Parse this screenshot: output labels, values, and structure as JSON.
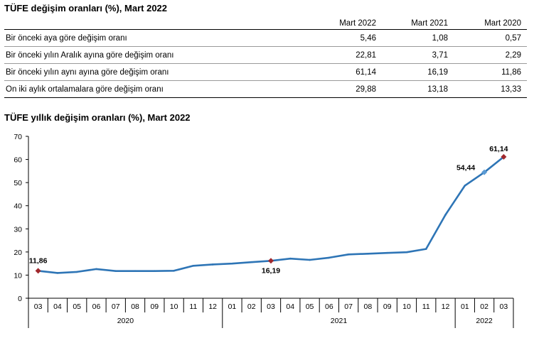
{
  "table": {
    "title": "TÜFE değişim oranları (%), Mart 2022",
    "columns": [
      "Mart 2022",
      "Mart 2021",
      "Mart 2020"
    ],
    "rows": [
      {
        "label": "Bir önceki aya göre değişim oranı",
        "values": [
          "5,46",
          "1,08",
          "0,57"
        ]
      },
      {
        "label": "Bir önceki yılın Aralık ayına göre değişim oranı",
        "values": [
          "22,81",
          "3,71",
          "2,29"
        ]
      },
      {
        "label": "Bir önceki yılın aynı ayına göre değişim oranı",
        "values": [
          "61,14",
          "16,19",
          "11,86"
        ]
      },
      {
        "label": "On iki aylık ortalamalara göre değişim oranı",
        "values": [
          "29,88",
          "13,18",
          "13,33"
        ]
      }
    ]
  },
  "chart_data": {
    "type": "line",
    "title": "TÜFE yıllık değişim oranları (%), Mart 2022",
    "xlabel": "",
    "ylabel": "",
    "ylim": [
      0,
      70
    ],
    "yticks": [
      0,
      10,
      20,
      30,
      40,
      50,
      60,
      70
    ],
    "grid": false,
    "legend": "none",
    "categories": [
      "03",
      "04",
      "05",
      "06",
      "07",
      "08",
      "09",
      "10",
      "11",
      "12",
      "01",
      "02",
      "03",
      "04",
      "05",
      "06",
      "07",
      "08",
      "09",
      "10",
      "11",
      "12",
      "01",
      "02",
      "03"
    ],
    "year_groups": [
      {
        "label": "2020",
        "start": 0,
        "end": 9
      },
      {
        "label": "2021",
        "start": 10,
        "end": 21
      },
      {
        "label": "2022",
        "start": 22,
        "end": 24
      }
    ],
    "series": [
      {
        "color": "#2e75b6",
        "values": [
          11.86,
          10.94,
          11.39,
          12.62,
          11.76,
          11.77,
          11.75,
          11.89,
          14.03,
          14.6,
          14.97,
          15.61,
          16.19,
          17.14,
          16.59,
          17.53,
          18.95,
          19.25,
          19.58,
          19.89,
          21.31,
          36.08,
          48.69,
          54.44,
          61.14
        ]
      }
    ],
    "annotations": [
      {
        "index": 0,
        "label": "11,86",
        "marker_color": "#a0282d"
      },
      {
        "index": 12,
        "label": "16,19",
        "marker_color": "#a0282d"
      },
      {
        "index": 23,
        "label": "54,44",
        "marker_color": "#5b9bd5"
      },
      {
        "index": 24,
        "label": "61,14",
        "marker_color": "#a0282d"
      }
    ]
  }
}
